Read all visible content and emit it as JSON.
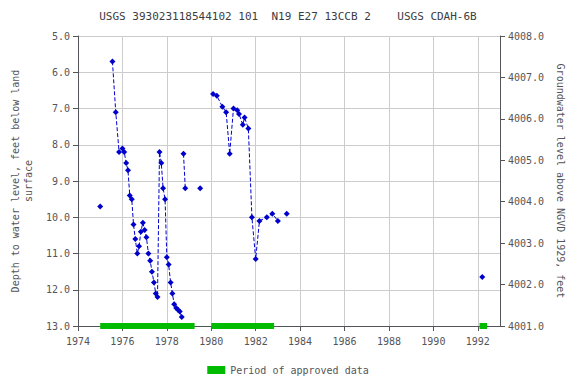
{
  "chart_data": {
    "type": "line",
    "title": "USGS 393023118544102 101  N19 E27 13CCB 2    USGS CDAH-6B",
    "ylabel": "Depth to water level, feet below land\nsurface",
    "y2label": "Groundwater level above NGVD 1929, feet",
    "xlim": [
      1974,
      1993
    ],
    "xticks": [
      1974,
      1976,
      1978,
      1980,
      1982,
      1984,
      1986,
      1988,
      1990,
      1992
    ],
    "ylim": [
      13.0,
      5.0
    ],
    "yticks": [
      {
        "value": 5.0,
        "label": "5.0"
      },
      {
        "value": 6.0,
        "label": "6.0"
      },
      {
        "value": 7.0,
        "label": "7.0"
      },
      {
        "value": 8.0,
        "label": "8.0"
      },
      {
        "value": 9.0,
        "label": "9.0"
      },
      {
        "value": 10.0,
        "label": "10.0"
      },
      {
        "value": 11.0,
        "label": "11.0"
      },
      {
        "value": 12.0,
        "label": "12.0"
      },
      {
        "value": 13.0,
        "label": "13.0"
      }
    ],
    "y2lim": [
      4001.0,
      4008.0
    ],
    "y2ticks": [
      {
        "value": 4001.0,
        "label": "4001.0"
      },
      {
        "value": 4002.0,
        "label": "4002.0"
      },
      {
        "value": 4003.0,
        "label": "4003.0"
      },
      {
        "value": 4004.0,
        "label": "4004.0"
      },
      {
        "value": 4005.0,
        "label": "4005.0"
      },
      {
        "value": 4006.0,
        "label": "4006.0"
      },
      {
        "value": 4007.0,
        "label": "4007.0"
      },
      {
        "value": 4008.0,
        "label": "4008.0"
      }
    ],
    "grid": true,
    "color": "#0000cc",
    "marker": "diamond",
    "line_style": "dashed",
    "segments": [
      {
        "x": [
          1975.0
        ],
        "y": [
          9.7
        ]
      },
      {
        "x": [
          1975.55,
          1975.7,
          1975.85
        ],
        "y": [
          5.7,
          7.1,
          8.2
        ]
      },
      {
        "x": [
          1976.0,
          1976.08,
          1976.17,
          1976.25,
          1976.33,
          1976.42,
          1976.5,
          1976.58,
          1976.67,
          1976.75,
          1976.83,
          1976.92,
          1977.0,
          1977.08,
          1977.17,
          1977.25,
          1977.33,
          1977.42,
          1977.5,
          1977.58,
          1977.67,
          1977.75,
          1977.83,
          1977.92,
          1978.0,
          1978.08,
          1978.17,
          1978.25,
          1978.33,
          1978.42,
          1978.5,
          1978.58,
          1978.67
        ],
        "y": [
          8.1,
          8.2,
          8.5,
          8.7,
          9.4,
          9.5,
          10.2,
          10.6,
          11.0,
          10.8,
          10.4,
          10.15,
          10.35,
          10.55,
          11.0,
          11.2,
          11.5,
          11.8,
          12.1,
          12.2,
          8.2,
          8.5,
          9.2,
          9.5,
          11.1,
          11.3,
          11.8,
          12.1,
          12.4,
          12.5,
          12.55,
          12.6,
          12.75
        ]
      },
      {
        "x": [
          1978.75,
          1978.83
        ],
        "y": [
          8.25,
          9.2
        ]
      },
      {
        "x": [
          1979.5
        ],
        "y": [
          9.2
        ]
      },
      {
        "x": [
          1980.08,
          1980.25,
          1980.5,
          1980.67,
          1980.83,
          1981.0,
          1981.17,
          1981.25,
          1981.42,
          1981.5,
          1981.67,
          1981.83,
          1982.0,
          1982.17,
          1982.5,
          1982.75,
          1983.0
        ],
        "y": [
          6.6,
          6.65,
          6.95,
          7.1,
          8.25,
          7.0,
          7.05,
          7.15,
          7.45,
          7.25,
          7.55,
          10.0,
          11.15,
          10.1,
          10.0,
          9.9,
          10.1
        ]
      },
      {
        "x": [
          1983.4
        ],
        "y": [
          9.9
        ]
      },
      {
        "x": [
          1992.2
        ],
        "y": [
          11.65
        ]
      }
    ],
    "approved_periods": [
      [
        1975.0,
        1979.25
      ],
      [
        1980.0,
        1982.83
      ],
      [
        1992.08,
        1992.42
      ]
    ],
    "approved_color": "#00bb00",
    "legend_label": "Period of approved data",
    "legend": "bottom"
  }
}
